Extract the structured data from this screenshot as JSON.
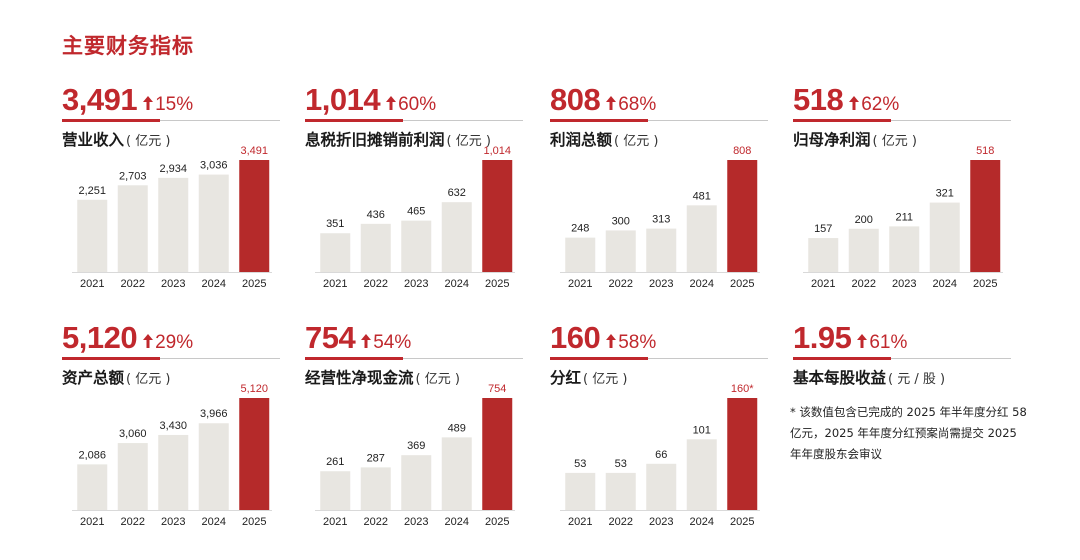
{
  "page": {
    "title": "主要财务指标"
  },
  "colors": {
    "accent": "#c0282d",
    "bar": "#e8e6e1",
    "bar_highlight": "#b52a2a"
  },
  "panels": [
    {
      "id": "revenue",
      "value": "3,491",
      "growth": "15%",
      "label": "营业收入",
      "unit": "( 亿元 )"
    },
    {
      "id": "ebitda",
      "value": "1,014",
      "growth": "60%",
      "label": "息税折旧摊销前利润",
      "unit": "( 亿元 )"
    },
    {
      "id": "total-profit",
      "value": "808",
      "growth": "68%",
      "label": "利润总额",
      "unit": "( 亿元 )"
    },
    {
      "id": "net-profit",
      "value": "518",
      "growth": "62%",
      "label": "归母净利润",
      "unit": "( 亿元 )"
    },
    {
      "id": "total-assets",
      "value": "5,120",
      "growth": "29%",
      "label": "资产总额",
      "unit": "( 亿元 )"
    },
    {
      "id": "operating-cash-flow",
      "value": "754",
      "growth": "54%",
      "label": "经营性净现金流",
      "unit": "( 亿元 )"
    },
    {
      "id": "dividend",
      "value": "160",
      "growth": "58%",
      "label": "分红",
      "unit": "( 亿元 )"
    },
    {
      "id": "eps",
      "value": "1.95",
      "growth": "61%",
      "label": "基本每股收益",
      "unit": "( 元 / 股 )"
    }
  ],
  "footnote": "* 该数值包含已完成的 2025 年半年度分红 58 亿元，2025 年年度分红预案尚需提交 2025 年年度股东会审议",
  "chart_data": [
    {
      "type": "bar",
      "title": "营业收入（亿元）",
      "categories": [
        "2021",
        "2022",
        "2023",
        "2024",
        "2025"
      ],
      "values": [
        2251,
        2703,
        2934,
        3036,
        3491
      ],
      "labels": [
        "2,251",
        "2,703",
        "2,934",
        "3,036",
        "3,491"
      ],
      "highlight_index": 4
    },
    {
      "type": "bar",
      "title": "息税折旧摊销前利润（亿元）",
      "categories": [
        "2021",
        "2022",
        "2023",
        "2024",
        "2025"
      ],
      "values": [
        351,
        436,
        465,
        632,
        1014
      ],
      "labels": [
        "351",
        "436",
        "465",
        "632",
        "1,014"
      ],
      "highlight_index": 4
    },
    {
      "type": "bar",
      "title": "利润总额（亿元）",
      "categories": [
        "2021",
        "2022",
        "2023",
        "2024",
        "2025"
      ],
      "values": [
        248,
        300,
        313,
        481,
        808
      ],
      "labels": [
        "248",
        "300",
        "313",
        "481",
        "808"
      ],
      "highlight_index": 4
    },
    {
      "type": "bar",
      "title": "归母净利润（亿元）",
      "categories": [
        "2021",
        "2022",
        "2023",
        "2024",
        "2025"
      ],
      "values": [
        157,
        200,
        211,
        321,
        518
      ],
      "labels": [
        "157",
        "200",
        "211",
        "321",
        "518"
      ],
      "highlight_index": 4
    },
    {
      "type": "bar",
      "title": "资产总额（亿元）",
      "categories": [
        "2021",
        "2022",
        "2023",
        "2024",
        "2025"
      ],
      "values": [
        2086,
        3060,
        3430,
        3966,
        5120
      ],
      "labels": [
        "2,086",
        "3,060",
        "3,430",
        "3,966",
        "5,120"
      ],
      "highlight_index": 4
    },
    {
      "type": "bar",
      "title": "经营性净现金流（亿元）",
      "categories": [
        "2021",
        "2022",
        "2023",
        "2024",
        "2025"
      ],
      "values": [
        261,
        287,
        369,
        489,
        754
      ],
      "labels": [
        "261",
        "287",
        "369",
        "489",
        "754"
      ],
      "highlight_index": 4
    },
    {
      "type": "bar",
      "title": "分红（亿元）",
      "categories": [
        "2021",
        "2022",
        "2023",
        "2024",
        "2025"
      ],
      "values": [
        53,
        53,
        66,
        101,
        160
      ],
      "labels": [
        "53",
        "53",
        "66",
        "101",
        "160*"
      ],
      "highlight_index": 4
    }
  ]
}
